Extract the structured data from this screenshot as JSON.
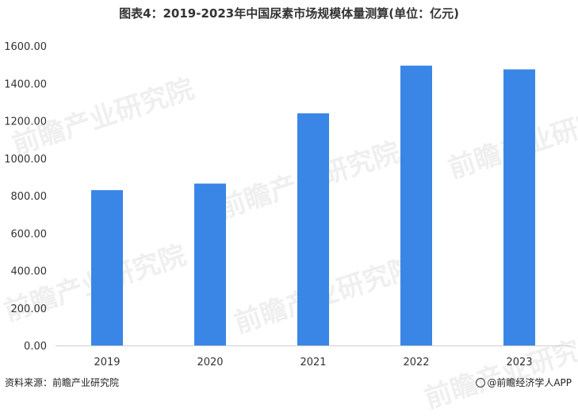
{
  "title": "图表4：2019-2023年中国尿素市场规模体量测算(单位：亿元)",
  "source": "资料来源：前瞻产业研究院",
  "brand": "@前瞻经济学人APP",
  "watermark": "前瞻产业研究院",
  "colors": {
    "bar": "#3a86e6",
    "axis": "#d0d0d0",
    "text": "#333333"
  },
  "chart_data": {
    "type": "bar",
    "title": "图表4：2019-2023年中国尿素市场规模体量测算(单位：亿元)",
    "categories": [
      "2019",
      "2020",
      "2021",
      "2022",
      "2023"
    ],
    "values": [
      830,
      865,
      1240,
      1495,
      1475
    ],
    "yticks": [
      "0.00",
      "200.00",
      "400.00",
      "600.00",
      "800.00",
      "1000.00",
      "1200.00",
      "1400.00",
      "1600.00"
    ],
    "ylim": [
      0,
      1600
    ],
    "xlabel": "",
    "ylabel": "",
    "grid": false,
    "legend": "none"
  }
}
